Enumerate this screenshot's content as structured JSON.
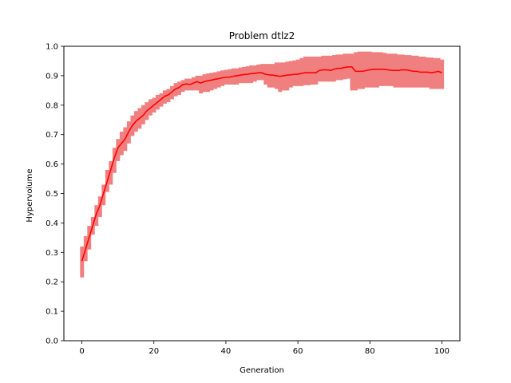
{
  "chart_data": {
    "type": "line",
    "title": "Problem dtlz2",
    "xlabel": "Generation",
    "ylabel": "Hypervolume",
    "xlim": [
      -5,
      105
    ],
    "ylim": [
      0.0,
      1.0
    ],
    "x_ticks": [
      0,
      20,
      40,
      60,
      80,
      100
    ],
    "x_tick_labels": [
      "0",
      "20",
      "40",
      "60",
      "80",
      "100"
    ],
    "y_ticks": [
      0.0,
      0.1,
      0.2,
      0.3,
      0.4,
      0.5,
      0.6,
      0.7,
      0.8,
      0.9,
      1.0
    ],
    "y_tick_labels": [
      "0.0",
      "0.1",
      "0.2",
      "0.3",
      "0.4",
      "0.5",
      "0.6",
      "0.7",
      "0.8",
      "0.9",
      "1.0"
    ],
    "grid": false,
    "line_color": "#ff0000",
    "band_color": "#f08080",
    "series": [
      {
        "x": [
          0,
          1,
          2,
          3,
          4,
          5,
          6,
          7,
          8,
          9,
          10,
          11,
          12,
          13,
          14,
          15,
          16,
          17,
          18,
          19,
          20,
          21,
          22,
          23,
          24,
          25,
          26,
          27,
          28,
          29,
          30,
          31,
          32,
          33,
          34,
          35,
          36,
          37,
          38,
          39,
          40,
          41,
          42,
          43,
          44,
          45,
          46,
          47,
          48,
          49,
          50,
          51,
          52,
          53,
          54,
          55,
          56,
          57,
          58,
          59,
          60,
          61,
          62,
          63,
          64,
          65,
          66,
          67,
          68,
          69,
          70,
          71,
          72,
          73,
          74,
          75,
          76,
          77,
          78,
          79,
          80,
          81,
          82,
          83,
          84,
          85,
          86,
          87,
          88,
          89,
          90,
          91,
          92,
          93,
          94,
          95,
          96,
          97,
          98,
          99,
          100
        ],
        "mean": [
          0.27,
          0.31,
          0.35,
          0.39,
          0.43,
          0.46,
          0.5,
          0.54,
          0.58,
          0.62,
          0.655,
          0.67,
          0.685,
          0.71,
          0.73,
          0.745,
          0.755,
          0.765,
          0.78,
          0.79,
          0.8,
          0.81,
          0.82,
          0.83,
          0.835,
          0.845,
          0.855,
          0.86,
          0.87,
          0.872,
          0.87,
          0.875,
          0.88,
          0.875,
          0.88,
          0.883,
          0.885,
          0.888,
          0.89,
          0.893,
          0.895,
          0.895,
          0.898,
          0.9,
          0.902,
          0.904,
          0.905,
          0.907,
          0.908,
          0.91,
          0.91,
          0.905,
          0.903,
          0.902,
          0.9,
          0.898,
          0.9,
          0.902,
          0.903,
          0.905,
          0.905,
          0.908,
          0.91,
          0.91,
          0.91,
          0.91,
          0.918,
          0.92,
          0.92,
          0.918,
          0.922,
          0.925,
          0.925,
          0.928,
          0.93,
          0.93,
          0.915,
          0.915,
          0.915,
          0.918,
          0.92,
          0.922,
          0.922,
          0.922,
          0.922,
          0.92,
          0.918,
          0.918,
          0.918,
          0.92,
          0.92,
          0.918,
          0.915,
          0.915,
          0.912,
          0.912,
          0.912,
          0.91,
          0.912,
          0.915,
          0.91
        ],
        "lower": [
          0.215,
          0.27,
          0.31,
          0.36,
          0.39,
          0.42,
          0.46,
          0.505,
          0.53,
          0.57,
          0.61,
          0.63,
          0.645,
          0.67,
          0.695,
          0.71,
          0.72,
          0.735,
          0.75,
          0.765,
          0.775,
          0.785,
          0.795,
          0.805,
          0.81,
          0.82,
          0.83,
          0.835,
          0.845,
          0.85,
          0.85,
          0.85,
          0.85,
          0.84,
          0.845,
          0.845,
          0.85,
          0.855,
          0.86,
          0.865,
          0.87,
          0.87,
          0.87,
          0.87,
          0.875,
          0.875,
          0.875,
          0.875,
          0.88,
          0.885,
          0.885,
          0.87,
          0.86,
          0.86,
          0.855,
          0.845,
          0.85,
          0.85,
          0.86,
          0.865,
          0.865,
          0.865,
          0.868,
          0.868,
          0.87,
          0.87,
          0.88,
          0.88,
          0.88,
          0.88,
          0.88,
          0.885,
          0.885,
          0.888,
          0.89,
          0.85,
          0.85,
          0.855,
          0.855,
          0.86,
          0.86,
          0.86,
          0.86,
          0.865,
          0.865,
          0.865,
          0.865,
          0.86,
          0.86,
          0.86,
          0.86,
          0.86,
          0.86,
          0.86,
          0.86,
          0.86,
          0.86,
          0.855,
          0.855,
          0.855,
          0.855
        ],
        "upper": [
          0.32,
          0.355,
          0.39,
          0.42,
          0.46,
          0.49,
          0.53,
          0.58,
          0.61,
          0.655,
          0.685,
          0.71,
          0.725,
          0.745,
          0.765,
          0.78,
          0.79,
          0.8,
          0.81,
          0.82,
          0.825,
          0.835,
          0.84,
          0.85,
          0.855,
          0.865,
          0.875,
          0.88,
          0.885,
          0.89,
          0.89,
          0.895,
          0.9,
          0.9,
          0.905,
          0.908,
          0.91,
          0.912,
          0.915,
          0.918,
          0.92,
          0.922,
          0.925,
          0.925,
          0.928,
          0.93,
          0.932,
          0.935,
          0.935,
          0.938,
          0.94,
          0.94,
          0.94,
          0.94,
          0.945,
          0.945,
          0.945,
          0.948,
          0.95,
          0.952,
          0.955,
          0.96,
          0.965,
          0.965,
          0.965,
          0.965,
          0.965,
          0.968,
          0.968,
          0.968,
          0.97,
          0.972,
          0.972,
          0.975,
          0.975,
          0.975,
          0.98,
          0.982,
          0.982,
          0.982,
          0.982,
          0.98,
          0.98,
          0.98,
          0.978,
          0.975,
          0.975,
          0.975,
          0.972,
          0.972,
          0.97,
          0.97,
          0.968,
          0.968,
          0.965,
          0.965,
          0.962,
          0.962,
          0.96,
          0.96,
          0.955
        ]
      }
    ]
  }
}
